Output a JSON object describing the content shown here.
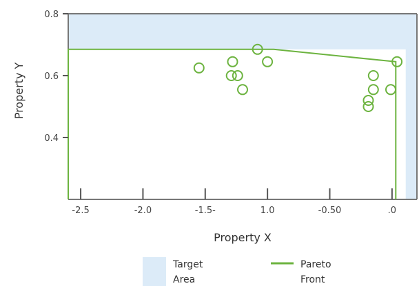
{
  "chart_data": {
    "type": "scatter",
    "xlabel": "Property X",
    "ylabel": "Property Y",
    "xlim": [
      -2.6,
      0.2
    ],
    "ylim": [
      0.2,
      0.8
    ],
    "x_ticks": [
      {
        "value": -2.5,
        "label": "-2.5"
      },
      {
        "value": -2.0,
        "label": "-2.0"
      },
      {
        "value": -1.5,
        "label": "-1.5-"
      },
      {
        "value": -1.0,
        "label": "1.0"
      },
      {
        "value": -0.5,
        "label": "-0.50"
      },
      {
        "value": 0.0,
        "label": ".0"
      }
    ],
    "y_ticks": [
      {
        "value": 0.8,
        "label": "0.8"
      },
      {
        "value": 0.6,
        "label": "0.6"
      },
      {
        "value": 0.4,
        "label": "0.4"
      }
    ],
    "grid": false,
    "target_area": {
      "name": "Target Area",
      "color": "#dcebf8",
      "edge_color": "#777777",
      "x_max": 0.11,
      "y_min": 0.2,
      "pareto_y": 0.685
    },
    "series": [
      {
        "name": "Pareto Front",
        "kind": "line",
        "color": "#6cb33f",
        "points": [
          [
            -2.6,
            0.2
          ],
          [
            -2.6,
            0.685
          ],
          [
            -0.95,
            0.685
          ],
          [
            0.03,
            0.645
          ],
          [
            0.03,
            0.2
          ]
        ]
      },
      {
        "kind": "scatter",
        "marker": "open-circle",
        "color": "#6cb33f",
        "x": [
          -1.55,
          -1.08,
          -1.28,
          -1.0,
          -1.29,
          -1.24,
          -1.2,
          0.04,
          -0.15,
          -0.15,
          -0.19,
          -0.19,
          -0.01
        ],
        "y": [
          0.625,
          0.685,
          0.645,
          0.645,
          0.6,
          0.6,
          0.555,
          0.645,
          0.6,
          0.555,
          0.52,
          0.5,
          0.555
        ]
      }
    ],
    "legend": {
      "position": "bottom",
      "entries": [
        {
          "label_lines": [
            "Target",
            "Area"
          ],
          "swatch": "box",
          "color": "#dcebf8"
        },
        {
          "label_lines": [
            "Pareto",
            "Front"
          ],
          "swatch": "line",
          "color": "#6cb33f"
        }
      ]
    }
  }
}
